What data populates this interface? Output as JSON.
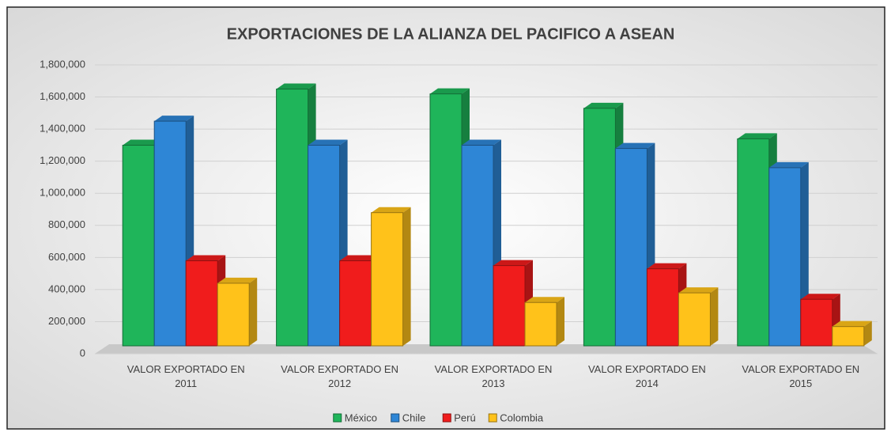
{
  "chart_data": {
    "type": "bar3d",
    "title": "EXPORTACIONES DE LA ALIANZA DEL PACIFICO A ASEAN",
    "categories": [
      "VALOR EXPORTADO EN 2011",
      "VALOR EXPORTADO EN 2012",
      "VALOR EXPORTADO EN 2013",
      "VALOR EXPORTADO EN 2014",
      "VALOR EXPORTADO EN 2015"
    ],
    "series": [
      {
        "name": "México",
        "color": "#1fb55a",
        "values": [
          1250000,
          1600000,
          1570000,
          1480000,
          1290000
        ]
      },
      {
        "name": "Chile",
        "color": "#2e86d6",
        "values": [
          1400000,
          1250000,
          1250000,
          1230000,
          1110000
        ]
      },
      {
        "name": "Perú",
        "color": "#f01c1c",
        "values": [
          530000,
          530000,
          500000,
          480000,
          290000
        ]
      },
      {
        "name": "Colombia",
        "color": "#ffc21a",
        "values": [
          390000,
          830000,
          270000,
          330000,
          120000
        ]
      }
    ],
    "ylim": [
      0,
      1800000
    ],
    "yticks": [
      0,
      {
        "value": 200000,
        "label": "200,000"
      },
      {
        "value": 400000,
        "label": "400,000"
      },
      {
        "value": 600000,
        "label": "600,000"
      },
      {
        "value": 800000,
        "label": "800,000"
      },
      {
        "value": 1000000,
        "label": "1,000,000"
      },
      {
        "value": 1200000,
        "label": "1,200,000"
      },
      {
        "value": 1400000,
        "label": "1,400,000"
      },
      {
        "value": 1600000,
        "label": "1,600,000"
      },
      {
        "value": 1800000,
        "label": "1,800,000"
      }
    ],
    "grid": true,
    "legend": "bottom"
  }
}
